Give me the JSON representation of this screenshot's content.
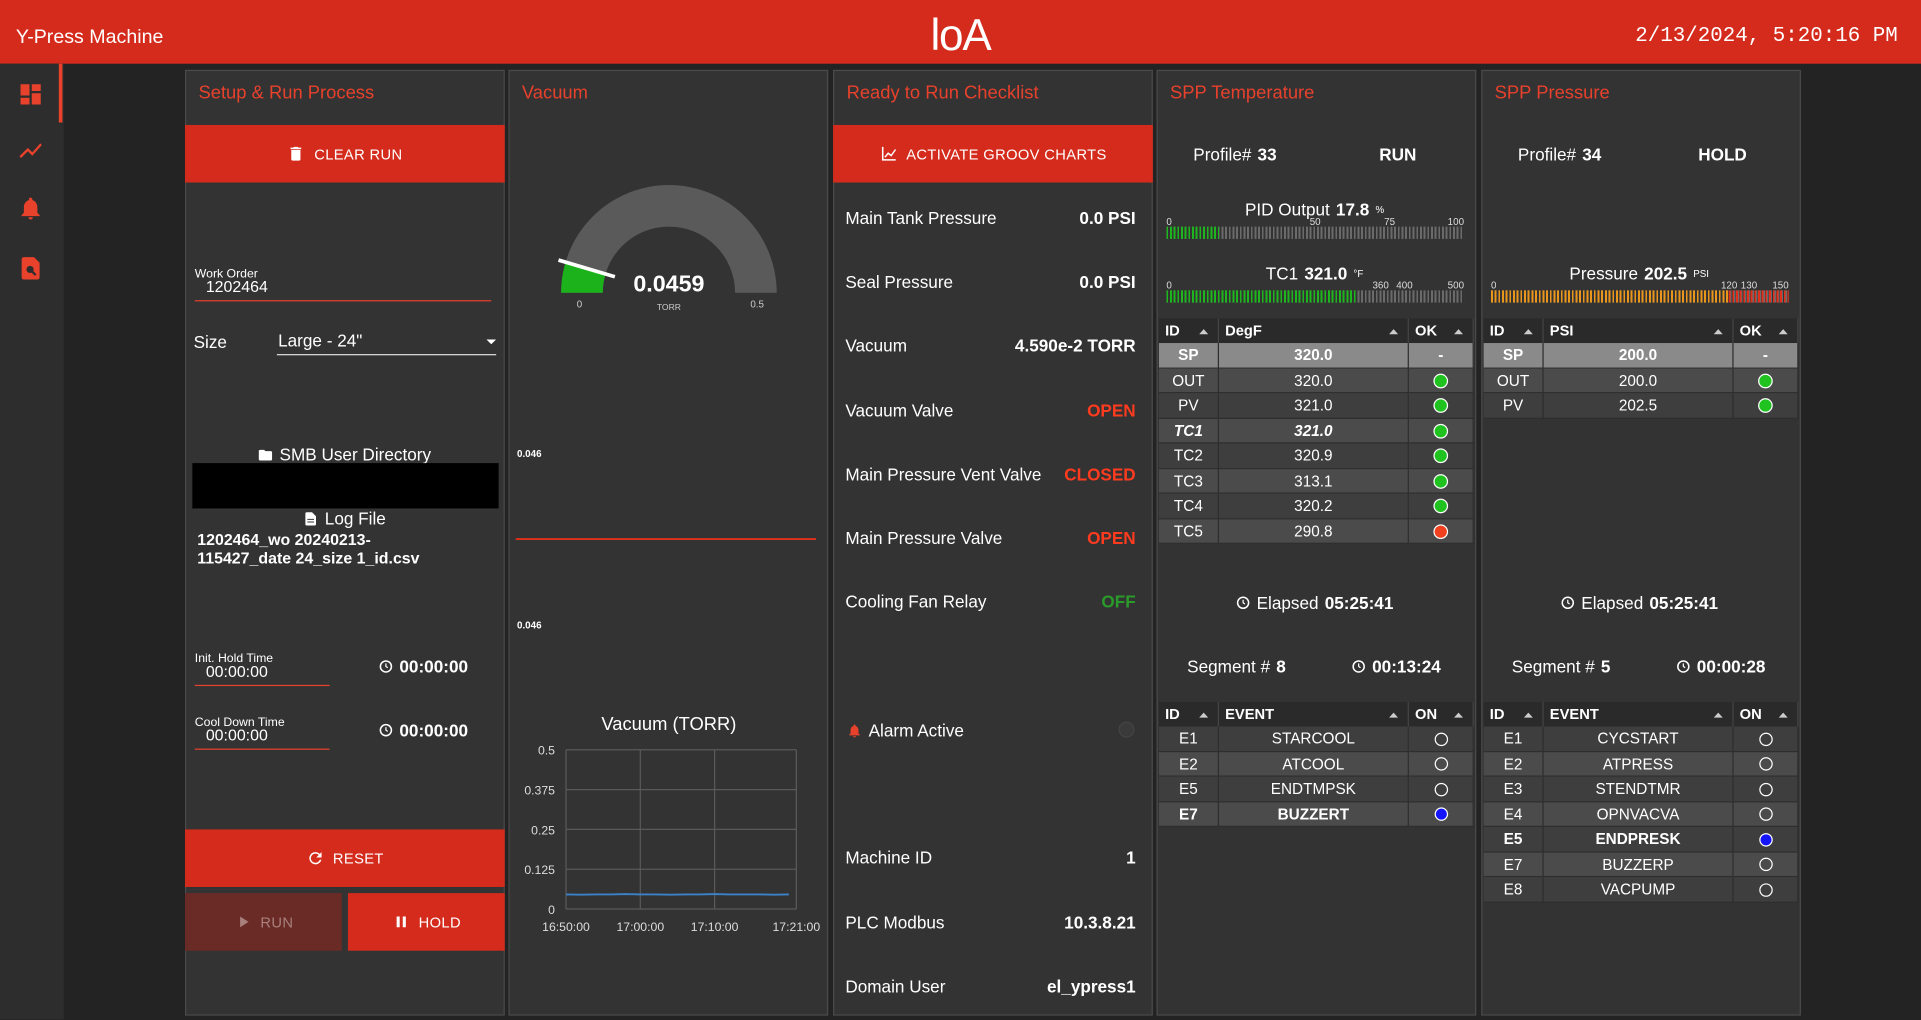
{
  "header": {
    "title": "Y-Press Machine",
    "logo": "loA",
    "datetime": "2/13/2024, 5:20:16 PM"
  },
  "setup": {
    "title": "Setup & Run Process",
    "clear_run": "CLEAR RUN",
    "work_order_label": "Work Order",
    "work_order": "1202464",
    "size_label": "Size",
    "size": "Large - 24\"",
    "smb": "SMB User Directory",
    "log_file_label": "Log File",
    "log_file": "1202464_wo 20240213-115427_date 24_size 1_id.csv",
    "init_hold_label": "Init. Hold Time",
    "init_hold_input": "00:00:00",
    "init_hold_timer": "00:00:00",
    "cool_down_label": "Cool Down Time",
    "cool_down_input": "00:00:00",
    "cool_down_timer": "00:00:00",
    "reset": "RESET",
    "run": "RUN",
    "hold": "HOLD"
  },
  "vacuum": {
    "title": "Vacuum",
    "gauge": {
      "value": 0.0459,
      "unit": "TORR",
      "min": 0,
      "max": 0.5,
      "color": "#1bb21b"
    },
    "spark_labels": [
      "0.046",
      "0.046"
    ],
    "chart": {
      "title": "Vacuum (TORR)",
      "color": "#3b82c8",
      "ylim": [
        0,
        0.5
      ],
      "yticks": [
        0,
        0.125,
        0.25,
        0.375,
        0.5
      ],
      "xlim": [
        "16:50:00",
        "17:21:00"
      ],
      "xticks": [
        "16:50:00",
        "17:00:00",
        "17:10:00",
        "17:21:00"
      ],
      "x": [
        "16:50:00",
        "16:52:00",
        "16:54:00",
        "16:56:00",
        "16:58:00",
        "17:00:00",
        "17:02:00",
        "17:04:00",
        "17:06:00",
        "17:08:00",
        "17:10:00",
        "17:12:00",
        "17:14:00",
        "17:16:00",
        "17:18:00",
        "17:20:00"
      ],
      "values": [
        0.046,
        0.045,
        0.046,
        0.046,
        0.047,
        0.046,
        0.046,
        0.045,
        0.046,
        0.046,
        0.047,
        0.046,
        0.046,
        0.046,
        0.045,
        0.046
      ]
    }
  },
  "checklist": {
    "title": "Ready to Run Checklist",
    "button": "ACTIVATE GROOV CHARTS",
    "items": [
      {
        "label": "Main Tank Pressure",
        "value": "0.0 PSI",
        "color": "#ffffff"
      },
      {
        "label": "Seal Pressure",
        "value": "0.0 PSI",
        "color": "#ffffff"
      },
      {
        "label": "Vacuum",
        "value": "4.590e-2 TORR",
        "color": "#ffffff"
      },
      {
        "label": "Vacuum Valve",
        "value": "OPEN",
        "color": "#ff3b1f"
      },
      {
        "label": "Main Pressure Vent Valve",
        "value": "CLOSED",
        "color": "#ff3b1f"
      },
      {
        "label": "Main Pressure Valve",
        "value": "OPEN",
        "color": "#ff3b1f"
      },
      {
        "label": "Cooling Fan Relay",
        "value": "OFF",
        "color": "#2a9a2a"
      }
    ],
    "alarm": "Alarm Active",
    "info": [
      {
        "label": "Machine ID",
        "value": "1"
      },
      {
        "label": "PLC Modbus",
        "value": "10.3.8.21"
      },
      {
        "label": "Domain User",
        "value": "el_ypress1"
      }
    ]
  },
  "temperature": {
    "title": "SPP Temperature",
    "profile_label": "Profile#",
    "profile": "33",
    "mode": "RUN",
    "meters": [
      {
        "label": "PID Output",
        "value": 17.8,
        "unit": "%",
        "min": 0,
        "max": 100,
        "ticks": [
          0,
          50,
          75,
          100
        ],
        "color": "#1fb51f"
      },
      {
        "label": "TC1",
        "value": 321,
        "value_label": "321.0",
        "unit": "°F",
        "min": 0,
        "max": 500,
        "ticks": [
          0,
          360,
          400,
          500
        ],
        "color": "#1fb51f"
      }
    ],
    "table": {
      "headers": [
        "ID",
        "DegF",
        "OK"
      ],
      "rows": [
        {
          "id": "SP",
          "value": "320.0",
          "ok": "-"
        },
        {
          "id": "OUT",
          "value": "320.0",
          "ok": "#1fc21f"
        },
        {
          "id": "PV",
          "value": "321.0",
          "ok": "#1fc21f"
        },
        {
          "id": "TC1",
          "value": "321.0",
          "ok": "#1fc21f"
        },
        {
          "id": "TC2",
          "value": "320.9",
          "ok": "#1fc21f"
        },
        {
          "id": "TC3",
          "value": "313.1",
          "ok": "#1fc21f"
        },
        {
          "id": "TC4",
          "value": "320.2",
          "ok": "#1fc21f"
        },
        {
          "id": "TC5",
          "value": "290.8",
          "ok": "#f0401e"
        }
      ]
    },
    "elapsed_label": "Elapsed",
    "elapsed": "05:25:41",
    "segment_label": "Segment #",
    "segment": "8",
    "segment_time": "00:13:24",
    "events": {
      "headers": [
        "ID",
        "EVENT",
        "ON"
      ],
      "rows": [
        {
          "id": "E1",
          "event": "STARCOOL",
          "on": false
        },
        {
          "id": "E2",
          "event": "ATCOOL",
          "on": false
        },
        {
          "id": "E5",
          "event": "ENDTMPSK",
          "on": false
        },
        {
          "id": "E7",
          "event": "BUZZERT",
          "on": true
        }
      ]
    }
  },
  "pressure": {
    "title": "SPP Pressure",
    "profile_label": "Profile#",
    "profile": "34",
    "mode": "HOLD",
    "meters": [
      {
        "label": "Pressure",
        "value": 202.5,
        "unit": "PSI",
        "min": 0,
        "max": 150,
        "ticks": [
          0,
          120,
          130,
          150
        ],
        "color": "#e8961c",
        "warn_from": 120,
        "warn_color": "#e0301c"
      }
    ],
    "table": {
      "headers": [
        "ID",
        "PSI",
        "OK"
      ],
      "rows": [
        {
          "id": "SP",
          "value": "200.0",
          "ok": "-"
        },
        {
          "id": "OUT",
          "value": "200.0",
          "ok": "#1fc21f"
        },
        {
          "id": "PV",
          "value": "202.5",
          "ok": "#1fc21f"
        }
      ]
    },
    "elapsed_label": "Elapsed",
    "elapsed": "05:25:41",
    "segment_label": "Segment #",
    "segment": "5",
    "segment_time": "00:00:28",
    "events": {
      "headers": [
        "ID",
        "EVENT",
        "ON"
      ],
      "rows": [
        {
          "id": "E1",
          "event": "CYCSTART",
          "on": false
        },
        {
          "id": "E2",
          "event": "ATPRESS",
          "on": false
        },
        {
          "id": "E3",
          "event": "STENDTMR",
          "on": false
        },
        {
          "id": "E4",
          "event": "OPNVACVA",
          "on": false
        },
        {
          "id": "E5",
          "event": "ENDPRESK",
          "on": true
        },
        {
          "id": "E7",
          "event": "BUZZERP",
          "on": false
        },
        {
          "id": "E8",
          "event": "VACPUMP",
          "on": false
        }
      ]
    }
  }
}
